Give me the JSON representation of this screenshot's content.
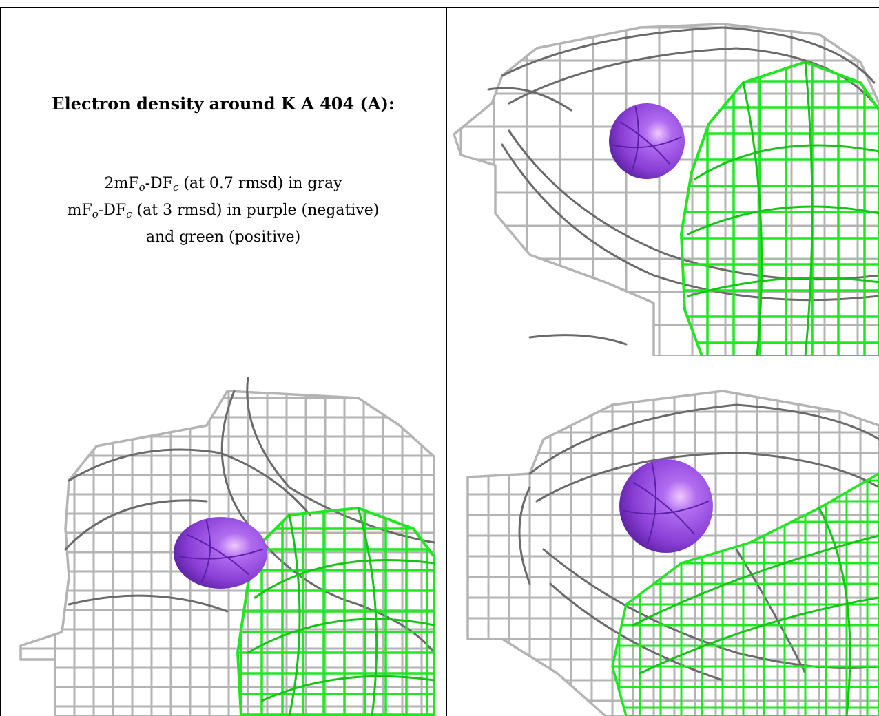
{
  "caption": {
    "title": "Electron density around K A 404 (A):",
    "line1_a": "2mF",
    "line1_o": "o",
    "line1_b": "-DF",
    "line1_c": "c",
    "line1_rest": " (at 0.7 rmsd) in gray",
    "line2_a": "mF",
    "line2_o": "o",
    "line2_b": "-DF",
    "line2_c": "c",
    "line2_rest": " (at 3 rmsd) in purple (negative)",
    "line3": "and green (positive)"
  },
  "colors": {
    "gray_mesh": "#b4b4b4",
    "dark_mesh": "#6a6a6a",
    "green_mesh": "#22e622",
    "atom_purple": "#8a3fd6",
    "atom_highlight": "#f0c8ff",
    "border": "#000000"
  }
}
